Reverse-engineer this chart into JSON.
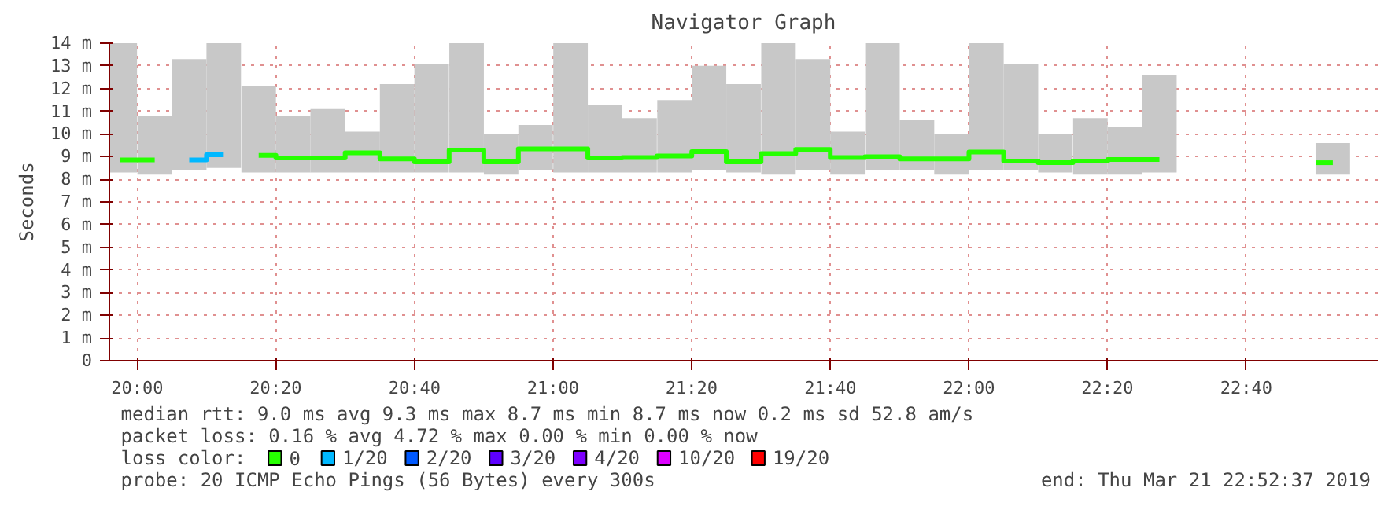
{
  "chart_data": {
    "type": "bar",
    "title": "Navigator Graph",
    "ylabel": "Seconds",
    "x": [
      19.958,
      20.042,
      20.125,
      20.208,
      20.292,
      20.375,
      20.458,
      20.542,
      20.625,
      20.708,
      20.792,
      20.875,
      20.958,
      21.042,
      21.125,
      21.208,
      21.292,
      21.375,
      21.458,
      21.542,
      21.625,
      21.708,
      21.792,
      21.875,
      21.958,
      22.042,
      22.125,
      22.208,
      22.292,
      22.375,
      22.458,
      22.875
    ],
    "xlim": [
      19.933,
      22.983
    ],
    "xticks": [
      {
        "value": 20.0,
        "label": "20:00"
      },
      {
        "value": 20.333,
        "label": "20:20"
      },
      {
        "value": 20.667,
        "label": "20:40"
      },
      {
        "value": 21.0,
        "label": "21:00"
      },
      {
        "value": 21.333,
        "label": "21:20"
      },
      {
        "value": 21.667,
        "label": "21:40"
      },
      {
        "value": 22.0,
        "label": "22:00"
      },
      {
        "value": 22.333,
        "label": "22:20"
      },
      {
        "value": 22.667,
        "label": "22:40"
      }
    ],
    "ylim": [
      0,
      14
    ],
    "yticks": [
      0,
      {
        "value": 1,
        "label": "1 m"
      },
      {
        "value": 2,
        "label": "2 m"
      },
      {
        "value": 3,
        "label": "3 m"
      },
      {
        "value": 4,
        "label": "4 m"
      },
      {
        "value": 5,
        "label": "5 m"
      },
      {
        "value": 6,
        "label": "6 m"
      },
      {
        "value": 7,
        "label": "7 m"
      },
      {
        "value": 8,
        "label": "8 m"
      },
      {
        "value": 9,
        "label": "9 m"
      },
      {
        "value": 10,
        "label": "10 m"
      },
      {
        "value": 11,
        "label": "11 m"
      },
      {
        "value": 12,
        "label": "12 m"
      },
      {
        "value": 13,
        "label": "13 m"
      },
      {
        "value": 14,
        "label": "14 m"
      }
    ],
    "grid": true,
    "legend": "bottom",
    "legend_title": "loss color:",
    "series": [
      {
        "color": "#c8c8c8",
        "base": [
          8.3,
          8.2,
          8.4,
          8.5,
          8.3,
          8.3,
          8.3,
          8.3,
          8.3,
          8.3,
          8.3,
          8.2,
          8.4,
          8.3,
          8.3,
          8.3,
          8.3,
          8.4,
          8.3,
          8.2,
          8.4,
          8.2,
          8.4,
          8.4,
          8.2,
          8.4,
          8.4,
          8.3,
          8.2,
          8.2,
          8.3,
          8.2
        ],
        "values": [
          5.7,
          2.6,
          4.9,
          5.5,
          3.8,
          2.5,
          2.8,
          1.8,
          3.9,
          4.8,
          5.7,
          1.8,
          2.0,
          5.7,
          3.0,
          2.4,
          3.2,
          4.6,
          3.9,
          5.8,
          4.9,
          1.9,
          5.6,
          2.2,
          1.8,
          5.6,
          4.7,
          1.7,
          2.5,
          2.1,
          4.3,
          1.4
        ]
      },
      {
        "type": "step",
        "name": "0",
        "color": "#26ff00",
        "values": [
          8.85,
          8.85,
          null,
          null,
          9.05,
          8.94,
          8.94,
          9.17,
          8.9,
          8.77,
          9.29,
          8.77,
          9.34,
          9.34,
          8.94,
          8.96,
          9.03,
          9.22,
          8.77,
          9.13,
          9.31,
          8.96,
          8.99,
          8.9,
          8.9,
          9.2,
          8.8,
          8.73,
          8.8,
          8.87,
          8.87,
          8.73
        ]
      },
      {
        "type": "step",
        "name": "1/20",
        "color": "#00b8ff",
        "values": [
          null,
          null,
          8.85,
          9.08,
          null,
          null,
          null,
          null,
          null,
          null,
          null,
          null,
          null,
          null,
          null,
          null,
          null,
          null,
          null,
          null,
          null,
          null,
          null,
          null,
          null,
          null,
          null,
          null,
          null,
          null,
          null,
          null
        ]
      },
      {
        "type": "step",
        "name": "2/20",
        "color": "#0059ff",
        "values": [
          null,
          null,
          null,
          null,
          null,
          null,
          null,
          null,
          null,
          null,
          null,
          null,
          null,
          null,
          null,
          null,
          null,
          null,
          null,
          null,
          null,
          null,
          null,
          null,
          null,
          null,
          null,
          null,
          null,
          null,
          null,
          null
        ]
      },
      {
        "type": "step",
        "name": "3/20",
        "color": "#5e00ff",
        "values": [
          null,
          null,
          null,
          null,
          null,
          null,
          null,
          null,
          null,
          null,
          null,
          null,
          null,
          null,
          null,
          null,
          null,
          null,
          null,
          null,
          null,
          null,
          null,
          null,
          null,
          null,
          null,
          null,
          null,
          null,
          null,
          null
        ]
      },
      {
        "type": "step",
        "name": "4/20",
        "color": "#7e00ff",
        "values": [
          null,
          null,
          null,
          null,
          null,
          null,
          null,
          null,
          null,
          null,
          null,
          null,
          null,
          null,
          null,
          null,
          null,
          null,
          null,
          null,
          null,
          null,
          null,
          null,
          null,
          null,
          null,
          null,
          null,
          null,
          null,
          null
        ]
      },
      {
        "type": "step",
        "name": "10/20",
        "color": "#dd00ff",
        "values": [
          null,
          null,
          null,
          null,
          null,
          null,
          null,
          null,
          null,
          null,
          null,
          null,
          null,
          null,
          null,
          null,
          null,
          null,
          null,
          null,
          null,
          null,
          null,
          null,
          null,
          null,
          null,
          null,
          null,
          null,
          null,
          null
        ]
      },
      {
        "type": "step",
        "name": "19/20",
        "color": "#ff0000",
        "values": [
          null,
          null,
          null,
          null,
          null,
          null,
          null,
          null,
          null,
          null,
          null,
          null,
          null,
          null,
          null,
          null,
          null,
          null,
          null,
          null,
          null,
          null,
          null,
          null,
          null,
          null,
          null,
          null,
          null,
          null,
          null,
          null
        ]
      }
    ],
    "annotations": [
      "median rtt:  9.0 ms avg  9.3 ms max  8.7 ms min  8.7 ms now  0.2 ms sd  52.8   am/s",
      "packet loss: 0.16 % avg  4.72 % max  0.00 % min  0.00 % now",
      "probe:       20 ICMP Echo Pings (56 Bytes) every 300s",
      "end: Thu Mar 21 22:52:37 2019"
    ]
  }
}
